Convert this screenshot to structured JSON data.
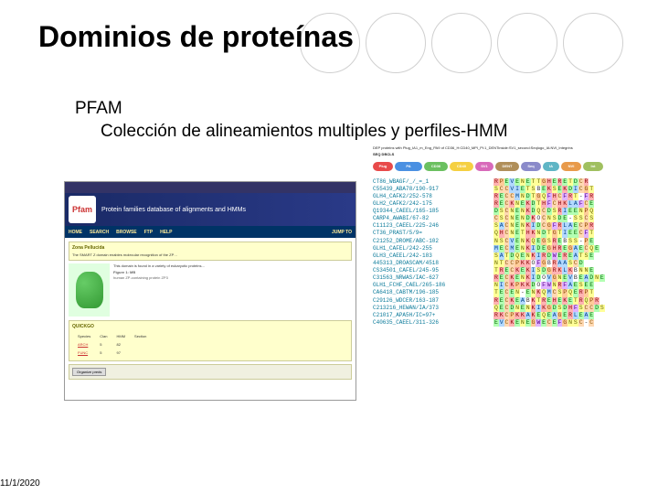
{
  "title": "Dominios de proteínas",
  "subtitle1": "PFAM",
  "subtitle2": "Colección de alineamientos multiples y perfiles-HMM",
  "date": "11/1/2020",
  "left": {
    "logo": "Pfam",
    "banner": "Protein families database of alignments and HMMs",
    "menu": [
      "HOME",
      "SEARCH",
      "BROWSE",
      "FTP",
      "HELP"
    ],
    "jump": "JUMP TO",
    "section_h1": "Zona Pellucida",
    "section_txt1": "The SMART Z domain enables molecular recognition of the ZP…",
    "fig_caption": "Figure 1: MB",
    "fig_sub": "human ZP-containing protein ZP3",
    "section_txt2": "This domain is found in a variety of eukaryotic proteins...",
    "quick_h": "QUICKGO",
    "table_rows": [
      [
        "ARCH",
        "5",
        "82"
      ],
      [
        "FUNC",
        "5",
        "97"
      ]
    ],
    "table_cols": [
      "Species",
      "Clan",
      "HMM",
      "Section"
    ],
    "btn": "Organize preds"
  },
  "domains_header": "DEP proteins with Plug_IA1_m_Eng_PA9 of CD36_H:CD40_MPI_PI:1_DENTinside:SV1_second:Seqlogo_IA:NVI_Integrins",
  "seqdbs": "SEQ DBCLS",
  "domains": [
    {
      "label": "Plug",
      "color": "#e84a4a",
      "w": 22
    },
    {
      "label": "PA",
      "color": "#4a90e2",
      "w": 30
    },
    {
      "label": "CD36",
      "color": "#6bc060",
      "w": 26
    },
    {
      "label": "CD40",
      "color": "#f5d042",
      "w": 26
    },
    {
      "label": "SV1",
      "color": "#d86aba",
      "w": 20
    },
    {
      "label": "DENT",
      "color": "#b08f5a",
      "w": 26
    },
    {
      "label": "Seq",
      "color": "#8a8aca",
      "w": 22
    },
    {
      "label": "IA",
      "color": "#5fb5c5",
      "w": 18
    },
    {
      "label": "NVI",
      "color": "#e89a4a",
      "w": 22
    },
    {
      "label": "Int",
      "color": "#a0c060",
      "w": 22
    }
  ],
  "alignment": [
    {
      "id": "CT86_WBAGF/_/_=_1",
      "seq": "RPEVENETTGHERETDCR"
    },
    {
      "id": "C55439_ABA78/190-917",
      "seq": "SCCVIETSBEKSEKDICGT"
    },
    {
      "id": "GLH4_CAFK2/252-578",
      "seq": "RECCMNDTGQFHCFRT-FR"
    },
    {
      "id": "GLH2_CAFK2/242-175",
      "seq": "RECKNEKDTHFCHKLAFCE"
    },
    {
      "id": "Q19344_CAEEL/165-185",
      "seq": "DSCNENKDQCDSRIEENPQ"
    },
    {
      "id": "CARP4_AWABI/67-82",
      "seq": "CSCNENDKOCNSDE-SSCS"
    },
    {
      "id": "C11123_CAEEL/225-246",
      "seq": "SACNENKIDCGFRLAECPR"
    },
    {
      "id": "CT36_PRAST/5/9=",
      "seq": "QHCNETHKNDTGTIEECFT"
    },
    {
      "id": "C21252_DROME/ABC-102",
      "seq": "NSCVENKQEGSREBSS-PE"
    },
    {
      "id": "GLH1_CAFEL/242-255",
      "seq": "MECMENKIDEGHREGAECQE"
    },
    {
      "id": "GLH3_CAEEL/242-183",
      "seq": "SATDQENKIRDWEREATSE"
    },
    {
      "id": "445313_DROASCAM/4518",
      "seq": "NTCCPKKOFGBRAASCD"
    },
    {
      "id": "CS34501_CAFEL/245-95",
      "seq": "TRECKEKISDGRKLKBNNE"
    },
    {
      "id": "C31563_NRWAS/IAC-627",
      "seq": "RECKENKIDOVGNEVBEADNE"
    },
    {
      "id": "GLH1_FCHF_CAEL/265-186",
      "seq": "NICKPKKDOFWNRFAESEE"
    },
    {
      "id": "CA6418_CABTM/196-185",
      "seq": "TECEN-ENKQMCSPQERPT"
    },
    {
      "id": "C29126_WDCER/163-187",
      "seq": "RECKEABKTREHEKETRQPR"
    },
    {
      "id": "C213216_HEWAN/IA/373",
      "seq": "QECDNENKIKGDSDHFSCCDS"
    },
    {
      "id": "C21017_APA5H/IC=97+",
      "seq": "RKCPKKAKEQEAGERLEAE"
    },
    {
      "id": "C40635_CAEEL/311-326",
      "seq": "EVCKENEGWECEFGNSC-C"
    }
  ],
  "color_map": {
    "R": "cC",
    "K": "cC",
    "H": "cC",
    "D": "cD",
    "E": "cD",
    "S": "cE",
    "T": "cE",
    "N": "cE",
    "Q": "cE",
    "C": "cG",
    "G": "cB",
    "P": "cB",
    "A": "cA",
    "V": "cA",
    "L": "cA",
    "I": "cA",
    "M": "cA",
    "F": "cF",
    "Y": "cF",
    "W": "cF",
    "-": "cW"
  }
}
